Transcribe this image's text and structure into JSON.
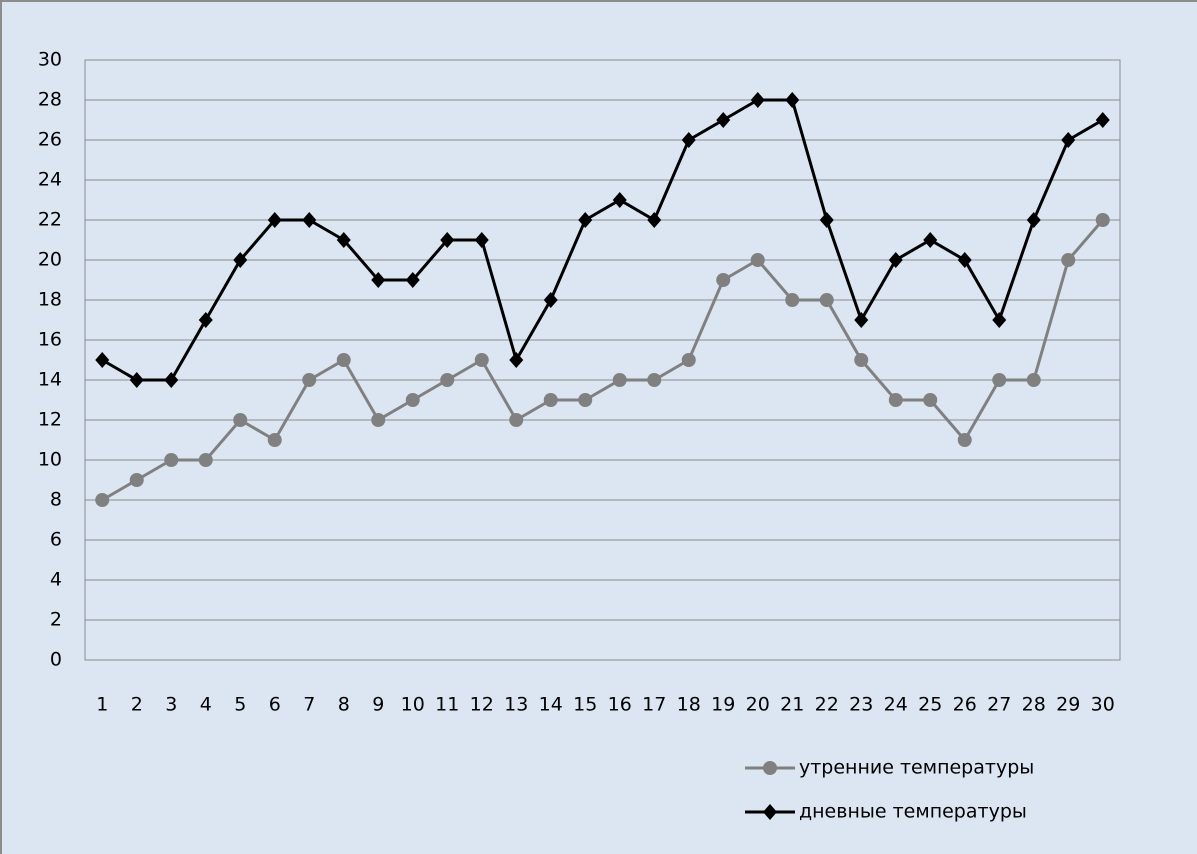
{
  "chart_data": {
    "type": "line",
    "categories": [
      "1",
      "2",
      "3",
      "4",
      "5",
      "6",
      "7",
      "8",
      "9",
      "10",
      "11",
      "12",
      "13",
      "14",
      "15",
      "16",
      "17",
      "18",
      "19",
      "20",
      "21",
      "22",
      "23",
      "24",
      "25",
      "26",
      "27",
      "28",
      "29",
      "30"
    ],
    "series": [
      {
        "name": "утренние температуры",
        "color": "#808080",
        "marker": "circle",
        "values": [
          8,
          9,
          10,
          10,
          12,
          11,
          14,
          15,
          12,
          13,
          14,
          15,
          12,
          13,
          13,
          14,
          14,
          15,
          19,
          20,
          18,
          18,
          15,
          13,
          13,
          11,
          14,
          14,
          20,
          22
        ]
      },
      {
        "name": "дневные температуры",
        "color": "#000000",
        "marker": "diamond",
        "values": [
          15,
          14,
          14,
          17,
          20,
          22,
          22,
          21,
          19,
          19,
          21,
          21,
          15,
          18,
          22,
          23,
          22,
          26,
          27,
          28,
          28,
          22,
          17,
          20,
          21,
          20,
          17,
          22,
          26,
          27
        ]
      }
    ],
    "ylim": [
      0,
      30
    ],
    "yticks": [
      0,
      2,
      4,
      6,
      8,
      10,
      12,
      14,
      16,
      18,
      20,
      22,
      24,
      26,
      28,
      30
    ],
    "grid": true,
    "legend": "bottom-right"
  }
}
